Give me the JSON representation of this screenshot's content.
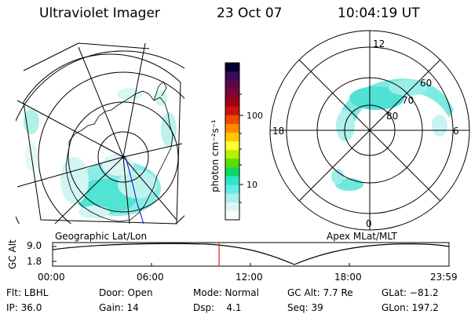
{
  "header": {
    "instrument": "Ultraviolet Imager",
    "date": "23 Oct 07",
    "time": "10:04:19 UT"
  },
  "geo_panel": {
    "label": "Geographic Lat/Lon"
  },
  "apex_panel": {
    "label": "Apex MLat/MLT",
    "mlt_labels": [
      "12",
      "18",
      "6",
      "0"
    ],
    "mlat_labels": [
      "60",
      "70",
      "80"
    ]
  },
  "colorbar": {
    "unit_label": "photon cm⁻²s⁻¹",
    "ticks": [
      "100",
      "10"
    ],
    "colors": [
      "#000033",
      "#3a0a55",
      "#5a0a4a",
      "#7a0530",
      "#a00010",
      "#cc1010",
      "#ee4a00",
      "#ff8a00",
      "#ffc800",
      "#ffff33",
      "#b8f000",
      "#56e000",
      "#10d860",
      "#2ce6c8",
      "#62ece6",
      "#a8f0ee",
      "#dcf6f4",
      "#f8fcfc"
    ]
  },
  "timeline": {
    "axis_label": "GC Alt",
    "y_ticks": [
      "9.0",
      "1.8"
    ],
    "x_ticks": [
      "00:00",
      "06:00",
      "12:00",
      "18:00",
      "23:59"
    ],
    "current_time_fraction": 0.42
  },
  "status": {
    "col1": [
      "Flt: LBHL",
      "IP: 36.0"
    ],
    "col2": [
      "Door: Open",
      "Gain: 14"
    ],
    "col3": [
      "Mode: Normal",
      "Dsp:    4.1"
    ],
    "col4": [
      "GC Alt: 7.7 Re",
      "Seq: 39"
    ],
    "col5": [
      "GLat: −81.2",
      "GLon: 197.2"
    ]
  }
}
